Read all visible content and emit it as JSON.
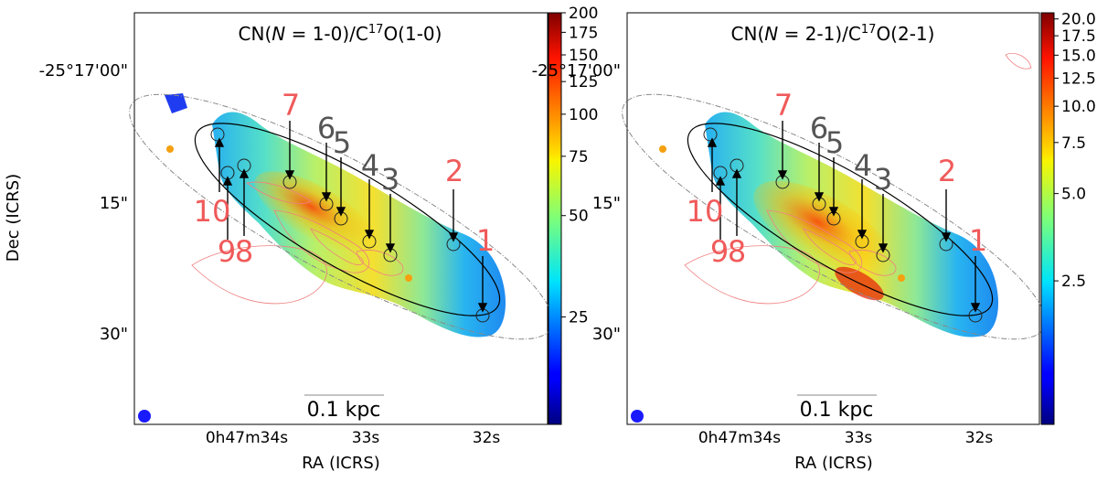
{
  "figure": {
    "shared_ylabel": "Dec (ICRS)",
    "y_ticks": [
      "-25°17'00\"",
      "15\"",
      "30\""
    ],
    "x_ticks": [
      "0h47m34s",
      "33s",
      "32s"
    ],
    "xlabel": "RA (ICRS)",
    "scalebar_label": "0.1 kpc"
  },
  "chart_data": [
    {
      "type": "heatmap",
      "title_parts": [
        "CN(",
        "N",
        " = 1-0)/C",
        "17",
        "O(1-0)"
      ],
      "xlabel": "RA (ICRS)",
      "ylabel": "Dec (ICRS)",
      "colorbar": {
        "scale": "log",
        "colormap": "jet",
        "range": [
          12,
          200
        ],
        "ticks": [
          200,
          175,
          150,
          125,
          100,
          75,
          50,
          25
        ],
        "tick_labels": [
          "200",
          "175",
          "150",
          "125",
          "100",
          "75",
          "50",
          "25"
        ]
      },
      "regions": [
        {
          "label": "1",
          "color": "red"
        },
        {
          "label": "2",
          "color": "red"
        },
        {
          "label": "3",
          "color": "gray"
        },
        {
          "label": "4",
          "color": "gray"
        },
        {
          "label": "5",
          "color": "gray"
        },
        {
          "label": "6",
          "color": "gray"
        },
        {
          "label": "7",
          "color": "red"
        },
        {
          "label": "8",
          "color": "red"
        },
        {
          "label": "9",
          "color": "red"
        },
        {
          "label": "10",
          "color": "red"
        }
      ],
      "beam_color": "#1a1aff",
      "marker_color": "#f5a010",
      "contour_color": "#f08080"
    },
    {
      "type": "heatmap",
      "title_parts": [
        "CN(",
        "N",
        " = 2-1)/C",
        "17",
        "O(2-1)"
      ],
      "xlabel": "RA (ICRS)",
      "ylabel": "Dec (ICRS)",
      "colorbar": {
        "scale": "log",
        "colormap": "jet",
        "range": [
          0.8,
          21
        ],
        "ticks": [
          20,
          17.5,
          15,
          12.5,
          10,
          7.5,
          5,
          2.5
        ],
        "tick_labels": [
          "20.0",
          "17.5",
          "15.0",
          "12.5",
          "10.0",
          "7.5",
          "5.0",
          "2.5"
        ]
      },
      "regions": [
        {
          "label": "1",
          "color": "red"
        },
        {
          "label": "2",
          "color": "red"
        },
        {
          "label": "3",
          "color": "gray"
        },
        {
          "label": "4",
          "color": "gray"
        },
        {
          "label": "5",
          "color": "gray"
        },
        {
          "label": "6",
          "color": "gray"
        },
        {
          "label": "7",
          "color": "red"
        },
        {
          "label": "8",
          "color": "red"
        },
        {
          "label": "9",
          "color": "red"
        },
        {
          "label": "10",
          "color": "red"
        }
      ],
      "beam_color": "#1a1aff",
      "marker_color": "#f5a010",
      "contour_color": "#f08080"
    }
  ]
}
